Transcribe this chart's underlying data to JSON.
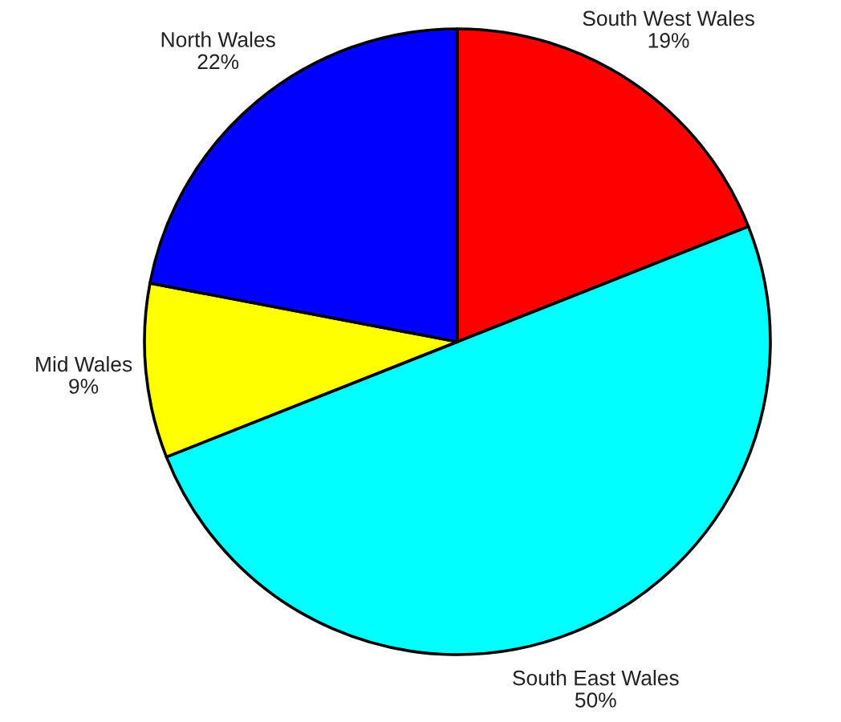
{
  "chart_data": {
    "type": "pie",
    "categories": [
      "South West Wales",
      "South East Wales",
      "Mid Wales",
      "North Wales"
    ],
    "values": [
      19,
      50,
      9,
      22
    ],
    "colors": [
      "#ff0000",
      "#00ffff",
      "#ffff00",
      "#0000ff"
    ],
    "value_labels": [
      "19%",
      "50%",
      "9%",
      "22%"
    ]
  }
}
